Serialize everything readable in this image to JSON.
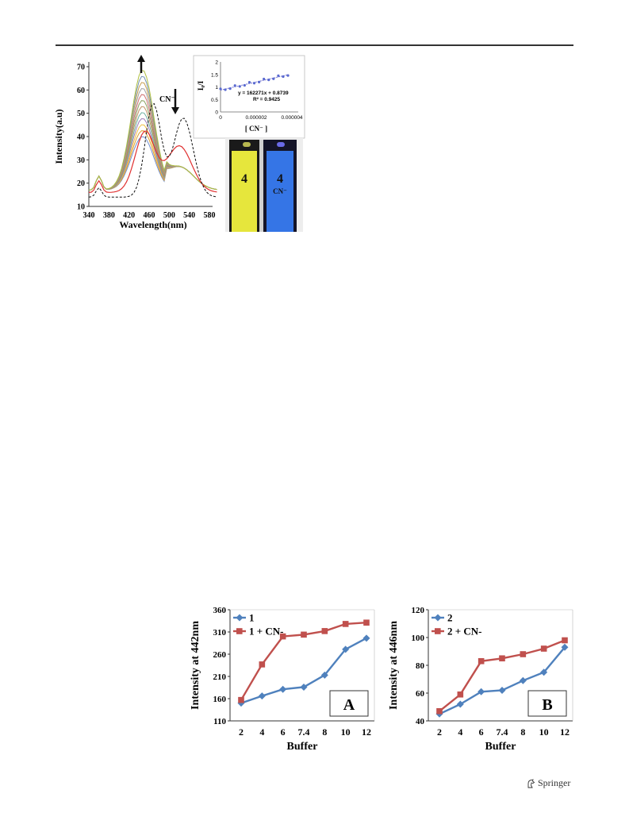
{
  "footer": {
    "publisher": "Springer"
  },
  "colors": {
    "series_blue": "#4f81bd",
    "series_red": "#c0504d"
  },
  "figure_top": {
    "main_chart": {
      "type": "line",
      "ylabel": "Intensity(a.u)",
      "xlabel": "Wavelength(nm)",
      "x_ticks": [
        "340",
        "380",
        "420",
        "460",
        "500",
        "540",
        "580"
      ],
      "y_ticks": [
        "10",
        "20",
        "30",
        "40",
        "50",
        "60",
        "70"
      ],
      "annotation": "CN⁻"
    },
    "inset_chart": {
      "type": "scatter",
      "ylabel": "I₀/I",
      "xlabel": "[ CN⁻ ]",
      "x_ticks": [
        "0",
        "0.000002",
        "0.000004"
      ],
      "y_ticks": [
        "0",
        "0.5",
        "1",
        "1.5",
        "2"
      ],
      "equation": "y = 162271x + 0.8739",
      "r_squared": "R² = 0.9425"
    },
    "vials": [
      {
        "label": "4",
        "color": "#e8e83a"
      },
      {
        "label": "4",
        "sublabel": "CN⁻",
        "color": "#2f6fe0"
      }
    ]
  },
  "chart_data": [
    {
      "type": "line",
      "panel": "A",
      "xlabel": "Buffer",
      "ylabel": "Intensity at 442nm",
      "categories": [
        "2",
        "4",
        "6",
        "7.4",
        "8",
        "10",
        "12"
      ],
      "ylim": [
        110,
        360
      ],
      "yticks": [
        110,
        160,
        210,
        260,
        310,
        360
      ],
      "legend": "top-left",
      "series": [
        {
          "name": "1",
          "color": "#4f81bd",
          "marker": "diamond",
          "values": [
            150,
            166,
            181,
            186,
            213,
            271,
            296
          ]
        },
        {
          "name": "1 + CN-",
          "color": "#c0504d",
          "marker": "square",
          "values": [
            157,
            237,
            300,
            304,
            312,
            328,
            331
          ]
        }
      ]
    },
    {
      "type": "line",
      "panel": "B",
      "xlabel": "Buffer",
      "ylabel": "Intensity at 446nm",
      "categories": [
        "2",
        "4",
        "6",
        "7.4",
        "8",
        "10",
        "12"
      ],
      "ylim": [
        40,
        120
      ],
      "yticks": [
        40,
        60,
        80,
        100,
        120
      ],
      "legend": "top-left",
      "series": [
        {
          "name": "2",
          "color": "#4f81bd",
          "marker": "diamond",
          "values": [
            45,
            52,
            61,
            62,
            69,
            75,
            93
          ]
        },
        {
          "name": "2 + CN-",
          "color": "#c0504d",
          "marker": "square",
          "values": [
            47,
            59,
            83,
            85,
            88,
            92,
            98
          ]
        }
      ]
    }
  ]
}
